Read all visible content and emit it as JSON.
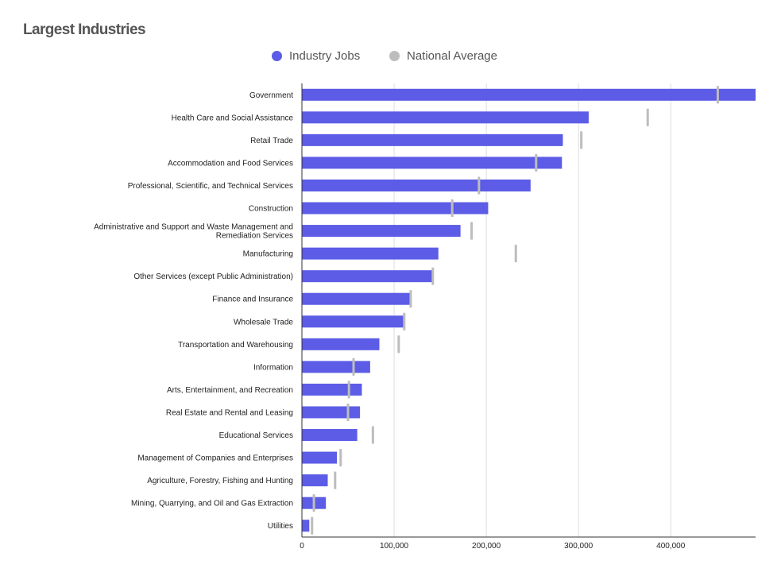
{
  "chart_data": {
    "type": "bar",
    "title": "Largest Industries",
    "orientation": "horizontal",
    "categories": [
      "Government",
      "Health Care and Social Assistance",
      "Retail Trade",
      "Accommodation and Food Services",
      "Professional, Scientific, and Technical Services",
      "Construction",
      "Administrative and Support and Waste Management and Remediation Services",
      "Manufacturing",
      "Other Services (except Public Administration)",
      "Finance and Insurance",
      "Wholesale Trade",
      "Transportation and Warehousing",
      "Information",
      "Arts, Entertainment, and Recreation",
      "Real Estate and Rental and Leasing",
      "Educational Services",
      "Management of Companies and Enterprises",
      "Agriculture, Forestry, Fishing and Hunting",
      "Mining, Quarrying, and Oil and Gas Extraction",
      "Utilities"
    ],
    "category_lines": [
      [
        "Government"
      ],
      [
        "Health Care and Social Assistance"
      ],
      [
        "Retail Trade"
      ],
      [
        "Accommodation and Food Services"
      ],
      [
        "Professional, Scientific, and Technical Services"
      ],
      [
        "Construction"
      ],
      [
        "Administrative and Support and Waste Management and",
        "Remediation Services"
      ],
      [
        "Manufacturing"
      ],
      [
        "Other Services (except Public Administration)"
      ],
      [
        "Finance and Insurance"
      ],
      [
        "Wholesale Trade"
      ],
      [
        "Transportation and Warehousing"
      ],
      [
        "Information"
      ],
      [
        "Arts, Entertainment, and Recreation"
      ],
      [
        "Real Estate and Rental and Leasing"
      ],
      [
        "Educational Services"
      ],
      [
        "Management of Companies and Enterprises"
      ],
      [
        "Agriculture, Forestry, Fishing and Hunting"
      ],
      [
        "Mining, Quarrying, and Oil and Gas Extraction"
      ],
      [
        "Utilities"
      ]
    ],
    "series": [
      {
        "name": "Industry Jobs",
        "color": "#5c5ce6",
        "mark": "bar",
        "values": [
          492000,
          311000,
          283000,
          282000,
          248000,
          202000,
          172000,
          148000,
          143000,
          119000,
          110000,
          84000,
          74000,
          65000,
          63000,
          60000,
          38000,
          28000,
          26000,
          8000
        ]
      },
      {
        "name": "National Average",
        "color": "#bdbdbd",
        "mark": "tick",
        "values": [
          451000,
          375000,
          303000,
          254000,
          192000,
          163000,
          184000,
          232000,
          142000,
          118000,
          111000,
          105000,
          56000,
          51000,
          50000,
          77000,
          42000,
          36000,
          13000,
          11000
        ]
      }
    ],
    "x_ticks": [
      0,
      100000,
      200000,
      300000,
      400000
    ],
    "x_tick_labels": [
      "0",
      "100,000",
      "200,000",
      "300,000",
      "400,000"
    ],
    "xlim": [
      0,
      492000
    ],
    "grid": true,
    "legend_position": "top-center"
  }
}
